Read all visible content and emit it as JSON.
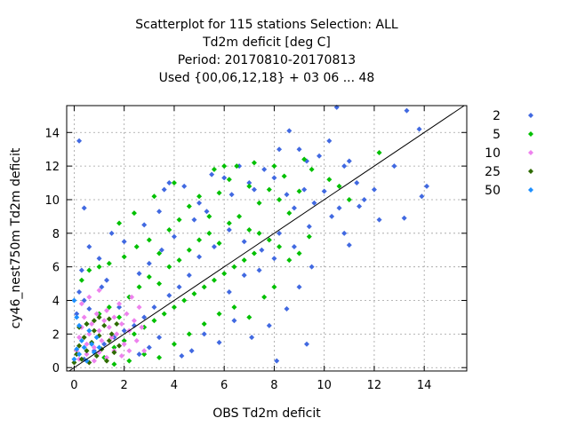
{
  "title_lines": [
    "Scatterplot for  115 stations Selection: ALL",
    "Td2m deficit [deg C]",
    "Period: 20170810-20170813",
    "Used {00,06,12,18} + 03 06 ... 48"
  ],
  "chart_data": {
    "type": "scatter",
    "xlabel": "OBS Td2m deficit",
    "ylabel": "cy46_nest750m Td2m deficit",
    "xlim": [
      -0.3,
      15.7
    ],
    "ylim": [
      -0.2,
      15.6
    ],
    "xticks": [
      0,
      2,
      4,
      6,
      8,
      10,
      12,
      14
    ],
    "yticks": [
      0,
      2,
      4,
      6,
      8,
      10,
      12,
      14
    ],
    "grid": true,
    "diagonal_line": true,
    "legend_position": "right",
    "series": [
      {
        "name": "2",
        "color": "#4169e1",
        "points": [
          [
            0.2,
            13.5
          ],
          [
            0.4,
            9.5
          ],
          [
            0.3,
            5.8
          ],
          [
            0.6,
            7.2
          ],
          [
            1.0,
            6.5
          ],
          [
            1.5,
            8.0
          ],
          [
            2.0,
            7.5
          ],
          [
            2.8,
            8.5
          ],
          [
            3.4,
            9.3
          ],
          [
            3.6,
            10.6
          ],
          [
            3.8,
            11.0
          ],
          [
            4.4,
            10.8
          ],
          [
            5.0,
            9.8
          ],
          [
            5.5,
            11.5
          ],
          [
            6.0,
            11.3
          ],
          [
            6.6,
            12.0
          ],
          [
            7.0,
            11.0
          ],
          [
            7.6,
            11.8
          ],
          [
            8.2,
            13.0
          ],
          [
            8.6,
            14.1
          ],
          [
            9.0,
            13.0
          ],
          [
            9.3,
            12.3
          ],
          [
            9.8,
            12.6
          ],
          [
            10.5,
            15.5
          ],
          [
            10.2,
            13.5
          ],
          [
            10.8,
            12.0
          ],
          [
            11.0,
            12.3
          ],
          [
            11.6,
            10.0
          ],
          [
            12.2,
            8.8
          ],
          [
            13.2,
            8.9
          ],
          [
            13.3,
            15.3
          ],
          [
            13.8,
            14.2
          ],
          [
            13.9,
            10.2
          ],
          [
            14.1,
            10.8
          ],
          [
            12.8,
            12.0
          ],
          [
            11.3,
            11.0
          ],
          [
            10.0,
            10.5
          ],
          [
            9.2,
            10.6
          ],
          [
            8.8,
            9.5
          ],
          [
            8.2,
            8.0
          ],
          [
            7.5,
            7.0
          ],
          [
            6.8,
            7.5
          ],
          [
            6.2,
            8.2
          ],
          [
            5.6,
            7.2
          ],
          [
            5.0,
            6.6
          ],
          [
            4.6,
            5.5
          ],
          [
            4.2,
            4.8
          ],
          [
            3.8,
            4.3
          ],
          [
            3.2,
            3.6
          ],
          [
            2.8,
            3.0
          ],
          [
            2.4,
            2.5
          ],
          [
            2.0,
            2.2
          ],
          [
            1.6,
            1.8
          ],
          [
            1.2,
            1.4
          ],
          [
            0.8,
            1.0
          ],
          [
            0.4,
            0.5
          ],
          [
            0.1,
            3.2
          ],
          [
            0.2,
            4.5
          ],
          [
            0.4,
            4.0
          ],
          [
            0.6,
            3.5
          ],
          [
            1.1,
            4.8
          ],
          [
            1.3,
            5.2
          ],
          [
            1.8,
            3.6
          ],
          [
            2.6,
            5.6
          ],
          [
            3.0,
            6.2
          ],
          [
            3.5,
            7.0
          ],
          [
            4.0,
            7.8
          ],
          [
            4.8,
            8.8
          ],
          [
            5.3,
            9.3
          ],
          [
            6.3,
            10.3
          ],
          [
            7.2,
            10.6
          ],
          [
            8.0,
            11.3
          ],
          [
            8.5,
            10.3
          ],
          [
            9.6,
            9.8
          ],
          [
            10.3,
            9.0
          ],
          [
            10.8,
            8.0
          ],
          [
            11.0,
            7.3
          ],
          [
            9.5,
            6.0
          ],
          [
            9.0,
            4.8
          ],
          [
            8.5,
            3.5
          ],
          [
            7.8,
            2.5
          ],
          [
            7.1,
            1.8
          ],
          [
            6.4,
            2.8
          ],
          [
            5.8,
            1.5
          ],
          [
            5.2,
            2.0
          ],
          [
            4.7,
            1.0
          ],
          [
            4.3,
            0.7
          ],
          [
            3.4,
            1.8
          ],
          [
            2.6,
            0.8
          ],
          [
            3.0,
            1.2
          ],
          [
            9.3,
            1.4
          ],
          [
            8.1,
            0.4
          ],
          [
            6.2,
            4.5
          ],
          [
            6.8,
            5.5
          ],
          [
            7.4,
            5.8
          ],
          [
            8.0,
            6.5
          ],
          [
            8.8,
            7.2
          ],
          [
            9.4,
            8.4
          ],
          [
            10.6,
            9.5
          ],
          [
            11.4,
            9.6
          ],
          [
            12.0,
            10.6
          ]
        ]
      },
      {
        "name": "5",
        "color": "#00c000",
        "points": [
          [
            0.3,
            5.2
          ],
          [
            0.6,
            5.8
          ],
          [
            1.0,
            6.0
          ],
          [
            1.4,
            6.2
          ],
          [
            2.0,
            6.6
          ],
          [
            2.5,
            7.2
          ],
          [
            3.0,
            7.6
          ],
          [
            3.4,
            6.8
          ],
          [
            3.8,
            8.2
          ],
          [
            4.2,
            8.8
          ],
          [
            4.6,
            9.6
          ],
          [
            5.0,
            10.2
          ],
          [
            5.4,
            9.0
          ],
          [
            5.8,
            10.4
          ],
          [
            6.2,
            11.2
          ],
          [
            6.5,
            12.0
          ],
          [
            7.0,
            10.8
          ],
          [
            7.4,
            9.8
          ],
          [
            7.8,
            10.6
          ],
          [
            8.2,
            10.0
          ],
          [
            8.6,
            9.2
          ],
          [
            9.0,
            10.5
          ],
          [
            9.5,
            11.8
          ],
          [
            10.2,
            11.2
          ],
          [
            10.6,
            10.8
          ],
          [
            11.0,
            10.0
          ],
          [
            12.2,
            12.8
          ],
          [
            0.5,
            2.6
          ],
          [
            1.0,
            3.2
          ],
          [
            1.4,
            3.6
          ],
          [
            1.8,
            3.0
          ],
          [
            2.2,
            4.2
          ],
          [
            2.6,
            4.8
          ],
          [
            3.0,
            5.4
          ],
          [
            3.4,
            5.0
          ],
          [
            3.8,
            6.0
          ],
          [
            4.2,
            6.4
          ],
          [
            4.6,
            7.0
          ],
          [
            5.0,
            7.6
          ],
          [
            5.4,
            8.0
          ],
          [
            5.8,
            7.4
          ],
          [
            6.2,
            8.6
          ],
          [
            6.6,
            9.0
          ],
          [
            7.0,
            8.2
          ],
          [
            7.4,
            8.0
          ],
          [
            7.8,
            7.6
          ],
          [
            8.2,
            7.2
          ],
          [
            8.6,
            6.4
          ],
          [
            9.0,
            6.8
          ],
          [
            9.4,
            7.8
          ],
          [
            1.2,
            0.6
          ],
          [
            1.6,
            1.2
          ],
          [
            2.0,
            1.6
          ],
          [
            2.4,
            2.0
          ],
          [
            2.8,
            2.4
          ],
          [
            3.2,
            2.8
          ],
          [
            3.6,
            3.2
          ],
          [
            4.0,
            3.6
          ],
          [
            4.4,
            4.0
          ],
          [
            4.8,
            4.4
          ],
          [
            5.2,
            4.8
          ],
          [
            5.6,
            5.2
          ],
          [
            6.0,
            5.6
          ],
          [
            6.4,
            6.0
          ],
          [
            6.8,
            6.4
          ],
          [
            7.2,
            6.8
          ],
          [
            7.6,
            4.2
          ],
          [
            8.0,
            4.8
          ],
          [
            1.6,
            0.2
          ],
          [
            2.2,
            0.4
          ],
          [
            2.8,
            0.8
          ],
          [
            3.4,
            0.6
          ],
          [
            4.0,
            1.4
          ],
          [
            4.6,
            2.0
          ],
          [
            5.2,
            2.6
          ],
          [
            5.8,
            3.2
          ],
          [
            6.4,
            3.6
          ],
          [
            7.0,
            3.0
          ],
          [
            2.4,
            9.2
          ],
          [
            1.8,
            8.6
          ],
          [
            3.2,
            10.2
          ],
          [
            4.0,
            11.0
          ],
          [
            5.6,
            11.8
          ],
          [
            6.0,
            12.0
          ],
          [
            7.2,
            12.2
          ],
          [
            8.0,
            12.0
          ],
          [
            8.4,
            11.4
          ],
          [
            9.2,
            12.4
          ]
        ]
      },
      {
        "name": "10",
        "color": "#ee82ee",
        "points": [
          [
            0.1,
            1.0
          ],
          [
            0.2,
            1.8
          ],
          [
            0.3,
            2.4
          ],
          [
            0.4,
            3.0
          ],
          [
            0.5,
            1.4
          ],
          [
            0.6,
            2.0
          ],
          [
            0.7,
            2.6
          ],
          [
            0.8,
            1.2
          ],
          [
            0.9,
            3.2
          ],
          [
            1.0,
            2.2
          ],
          [
            1.1,
            1.6
          ],
          [
            1.2,
            2.8
          ],
          [
            1.3,
            3.4
          ],
          [
            1.4,
            2.4
          ],
          [
            1.5,
            1.8
          ],
          [
            1.6,
            3.0
          ],
          [
            1.7,
            2.0
          ],
          [
            1.8,
            3.8
          ],
          [
            1.9,
            2.6
          ],
          [
            2.0,
            1.4
          ],
          [
            2.1,
            3.2
          ],
          [
            2.2,
            2.2
          ],
          [
            2.3,
            4.2
          ],
          [
            2.4,
            2.8
          ],
          [
            2.5,
            1.6
          ],
          [
            2.6,
            3.6
          ],
          [
            2.7,
            2.4
          ],
          [
            2.8,
            1.0
          ],
          [
            0.2,
            0.5
          ],
          [
            0.5,
            0.8
          ],
          [
            0.8,
            0.4
          ],
          [
            1.0,
            0.9
          ],
          [
            1.3,
            0.6
          ],
          [
            1.6,
            1.0
          ],
          [
            1.9,
            0.7
          ],
          [
            2.2,
            1.0
          ],
          [
            0.3,
            3.8
          ],
          [
            0.6,
            4.2
          ],
          [
            1.0,
            4.6
          ]
        ]
      },
      {
        "name": "25",
        "color": "#2e6b00",
        "points": [
          [
            0.0,
            0.3
          ],
          [
            0.1,
            0.8
          ],
          [
            0.2,
            1.3
          ],
          [
            0.3,
            0.5
          ],
          [
            0.4,
            1.8
          ],
          [
            0.5,
            1.0
          ],
          [
            0.6,
            0.3
          ],
          [
            0.7,
            1.5
          ],
          [
            0.8,
            2.2
          ],
          [
            0.9,
            0.7
          ],
          [
            1.0,
            1.9
          ],
          [
            1.1,
            1.1
          ],
          [
            1.2,
            2.5
          ],
          [
            1.3,
            0.4
          ],
          [
            1.4,
            1.6
          ],
          [
            1.5,
            2.0
          ],
          [
            1.6,
            0.9
          ],
          [
            1.7,
            2.6
          ],
          [
            1.8,
            1.3
          ],
          [
            0.2,
            2.4
          ],
          [
            0.5,
            2.6
          ],
          [
            0.8,
            2.8
          ],
          [
            1.0,
            3.0
          ],
          [
            1.4,
            2.9
          ]
        ]
      },
      {
        "name": "50",
        "color": "#1e90ff",
        "points": [
          [
            0.0,
            0.5
          ],
          [
            0.1,
            1.1
          ],
          [
            0.2,
            0.8
          ],
          [
            0.3,
            1.6
          ],
          [
            0.4,
            1.2
          ],
          [
            0.5,
            0.4
          ],
          [
            0.6,
            2.2
          ],
          [
            0.7,
            1.4
          ],
          [
            0.8,
            0.9
          ],
          [
            0.9,
            1.8
          ],
          [
            1.0,
            1.2
          ],
          [
            0.1,
            3.0
          ],
          [
            0.0,
            4.0
          ],
          [
            0.2,
            2.5
          ]
        ]
      }
    ]
  }
}
